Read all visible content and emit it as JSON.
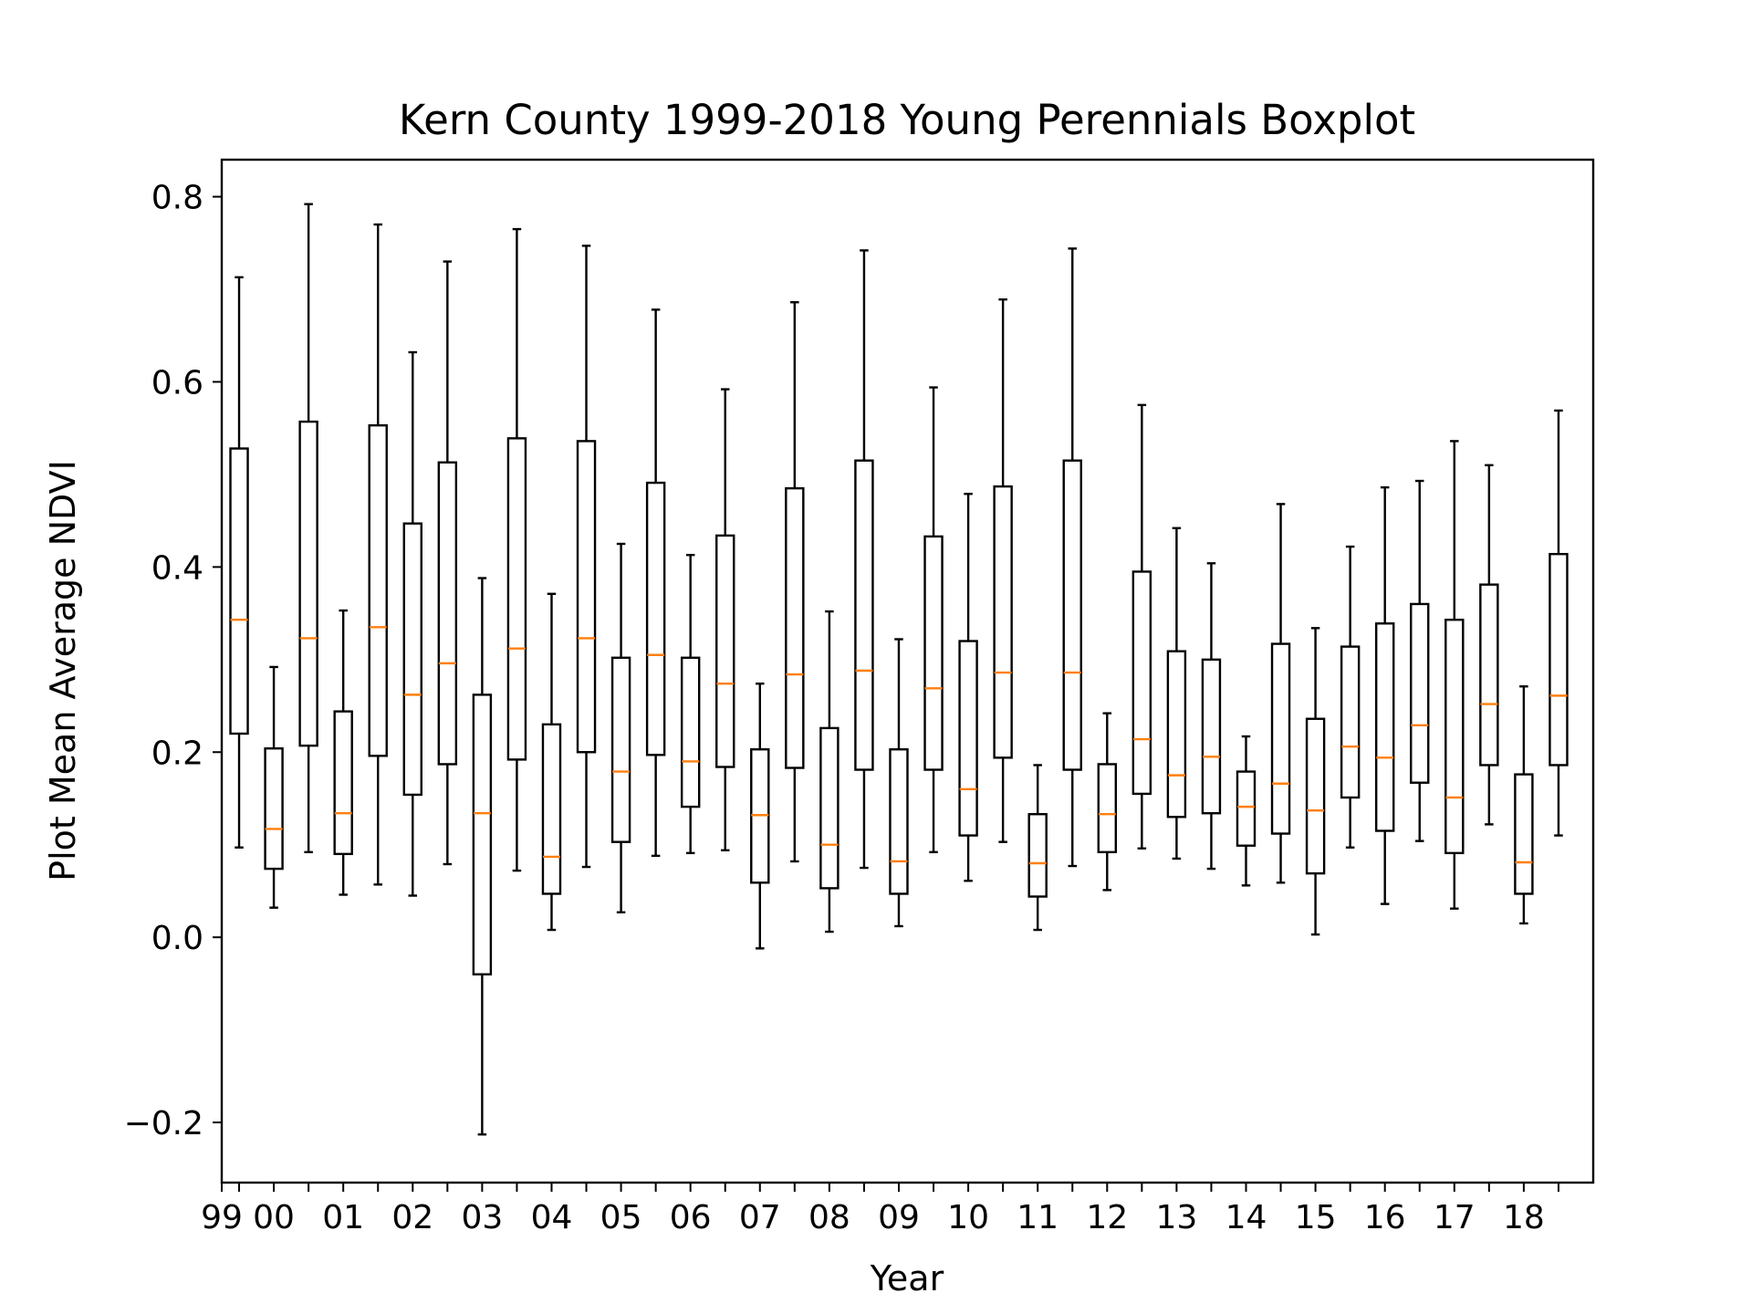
{
  "chart_data": {
    "type": "boxplot",
    "title": "Kern County 1999-2018 Young Perennials Boxplot",
    "xlabel": "Year",
    "ylabel": "Plot Mean Average NDVI",
    "x_tick_labels": [
      "99",
      "00",
      "01",
      "02",
      "03",
      "04",
      "05",
      "06",
      "07",
      "08",
      "09",
      "10",
      "11",
      "12",
      "13",
      "14",
      "15",
      "16",
      "17",
      "18"
    ],
    "y_ticks": [
      -0.2,
      0.0,
      0.2,
      0.4,
      0.6,
      0.8
    ],
    "y_tick_labels": [
      "−0.2",
      "0.0",
      "0.2",
      "0.4",
      "0.6",
      "0.8"
    ],
    "ylim": [
      -0.265,
      0.84
    ],
    "grid": false,
    "colors": {
      "box": "#000000",
      "median": "#ff7f0e"
    },
    "boxes": [
      {
        "wl": 0.097,
        "q1": 0.22,
        "med": 0.343,
        "q3": 0.528,
        "wh": 0.713
      },
      {
        "wl": 0.032,
        "q1": 0.074,
        "med": 0.117,
        "q3": 0.204,
        "wh": 0.292
      },
      {
        "wl": 0.092,
        "q1": 0.207,
        "med": 0.323,
        "q3": 0.557,
        "wh": 0.792
      },
      {
        "wl": 0.046,
        "q1": 0.09,
        "med": 0.134,
        "q3": 0.244,
        "wh": 0.353
      },
      {
        "wl": 0.057,
        "q1": 0.196,
        "med": 0.335,
        "q3": 0.553,
        "wh": 0.77
      },
      {
        "wl": 0.045,
        "q1": 0.154,
        "med": 0.262,
        "q3": 0.447,
        "wh": 0.632
      },
      {
        "wl": 0.079,
        "q1": 0.187,
        "med": 0.296,
        "q3": 0.513,
        "wh": 0.73
      },
      {
        "wl": -0.213,
        "q1": -0.04,
        "med": 0.134,
        "q3": 0.262,
        "wh": 0.388
      },
      {
        "wl": 0.072,
        "q1": 0.192,
        "med": 0.312,
        "q3": 0.539,
        "wh": 0.765
      },
      {
        "wl": 0.008,
        "q1": 0.047,
        "med": 0.087,
        "q3": 0.23,
        "wh": 0.371
      },
      {
        "wl": 0.076,
        "q1": 0.2,
        "med": 0.323,
        "q3": 0.536,
        "wh": 0.747
      },
      {
        "wl": 0.027,
        "q1": 0.103,
        "med": 0.179,
        "q3": 0.302,
        "wh": 0.425
      },
      {
        "wl": 0.088,
        "q1": 0.197,
        "med": 0.305,
        "q3": 0.491,
        "wh": 0.678
      },
      {
        "wl": 0.091,
        "q1": 0.141,
        "med": 0.19,
        "q3": 0.302,
        "wh": 0.413
      },
      {
        "wl": 0.094,
        "q1": 0.184,
        "med": 0.274,
        "q3": 0.434,
        "wh": 0.592
      },
      {
        "wl": -0.012,
        "q1": 0.059,
        "med": 0.132,
        "q3": 0.203,
        "wh": 0.274
      },
      {
        "wl": 0.082,
        "q1": 0.183,
        "med": 0.284,
        "q3": 0.485,
        "wh": 0.686
      },
      {
        "wl": 0.006,
        "q1": 0.053,
        "med": 0.1,
        "q3": 0.226,
        "wh": 0.352
      },
      {
        "wl": 0.075,
        "q1": 0.181,
        "med": 0.288,
        "q3": 0.515,
        "wh": 0.742
      },
      {
        "wl": 0.012,
        "q1": 0.047,
        "med": 0.082,
        "q3": 0.203,
        "wh": 0.322
      },
      {
        "wl": 0.092,
        "q1": 0.181,
        "med": 0.269,
        "q3": 0.433,
        "wh": 0.594
      },
      {
        "wl": 0.061,
        "q1": 0.11,
        "med": 0.16,
        "q3": 0.32,
        "wh": 0.479
      },
      {
        "wl": 0.103,
        "q1": 0.194,
        "med": 0.286,
        "q3": 0.487,
        "wh": 0.689
      },
      {
        "wl": 0.008,
        "q1": 0.044,
        "med": 0.08,
        "q3": 0.133,
        "wh": 0.186
      },
      {
        "wl": 0.077,
        "q1": 0.181,
        "med": 0.286,
        "q3": 0.515,
        "wh": 0.744
      },
      {
        "wl": 0.051,
        "q1": 0.092,
        "med": 0.133,
        "q3": 0.187,
        "wh": 0.242
      },
      {
        "wl": 0.096,
        "q1": 0.155,
        "med": 0.214,
        "q3": 0.395,
        "wh": 0.575
      },
      {
        "wl": 0.085,
        "q1": 0.13,
        "med": 0.175,
        "q3": 0.309,
        "wh": 0.442
      },
      {
        "wl": 0.074,
        "q1": 0.134,
        "med": 0.195,
        "q3": 0.3,
        "wh": 0.404
      },
      {
        "wl": 0.056,
        "q1": 0.099,
        "med": 0.141,
        "q3": 0.179,
        "wh": 0.217
      },
      {
        "wl": 0.059,
        "q1": 0.112,
        "med": 0.166,
        "q3": 0.317,
        "wh": 0.468
      },
      {
        "wl": 0.003,
        "q1": 0.069,
        "med": 0.137,
        "q3": 0.236,
        "wh": 0.334
      },
      {
        "wl": 0.097,
        "q1": 0.151,
        "med": 0.206,
        "q3": 0.314,
        "wh": 0.422
      },
      {
        "wl": 0.036,
        "q1": 0.115,
        "med": 0.194,
        "q3": 0.339,
        "wh": 0.486
      },
      {
        "wl": 0.104,
        "q1": 0.167,
        "med": 0.229,
        "q3": 0.36,
        "wh": 0.493
      },
      {
        "wl": 0.031,
        "q1": 0.091,
        "med": 0.151,
        "q3": 0.343,
        "wh": 0.536
      },
      {
        "wl": 0.122,
        "q1": 0.186,
        "med": 0.252,
        "q3": 0.381,
        "wh": 0.51
      },
      {
        "wl": 0.015,
        "q1": 0.047,
        "med": 0.081,
        "q3": 0.176,
        "wh": 0.271
      },
      {
        "wl": 0.11,
        "q1": 0.186,
        "med": 0.261,
        "q3": 0.414,
        "wh": 0.569
      }
    ]
  }
}
